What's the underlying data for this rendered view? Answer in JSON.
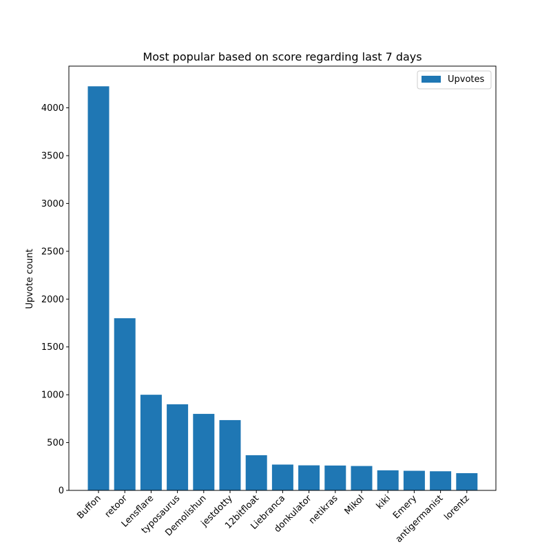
{
  "chart_data": {
    "type": "bar",
    "title": "Most popular based on score regarding last 7 days",
    "xlabel": "",
    "ylabel": "Upvote count",
    "categories": [
      "Buffon",
      "retoor",
      "Lensflare",
      "typosaurus",
      "Demolishun",
      "jestdotty",
      "12bitfloat",
      "Liebranca",
      "donkulator",
      "netikras",
      "Mikol",
      "kiki",
      "Emery",
      "antigermanist",
      "lorentz"
    ],
    "series": [
      {
        "name": "Upvotes",
        "values": [
          4225,
          1800,
          1000,
          900,
          800,
          735,
          368,
          270,
          262,
          260,
          255,
          210,
          205,
          200,
          180
        ]
      }
    ],
    "yticks": [
      0,
      500,
      1000,
      1500,
      2000,
      2500,
      3000,
      3500,
      4000
    ],
    "ylim": [
      0,
      4436
    ],
    "grid": false,
    "legend_position": "top-right",
    "colors": {
      "bar": "#1f77b4",
      "axis": "#000000",
      "legend_border": "#cccccc"
    }
  }
}
